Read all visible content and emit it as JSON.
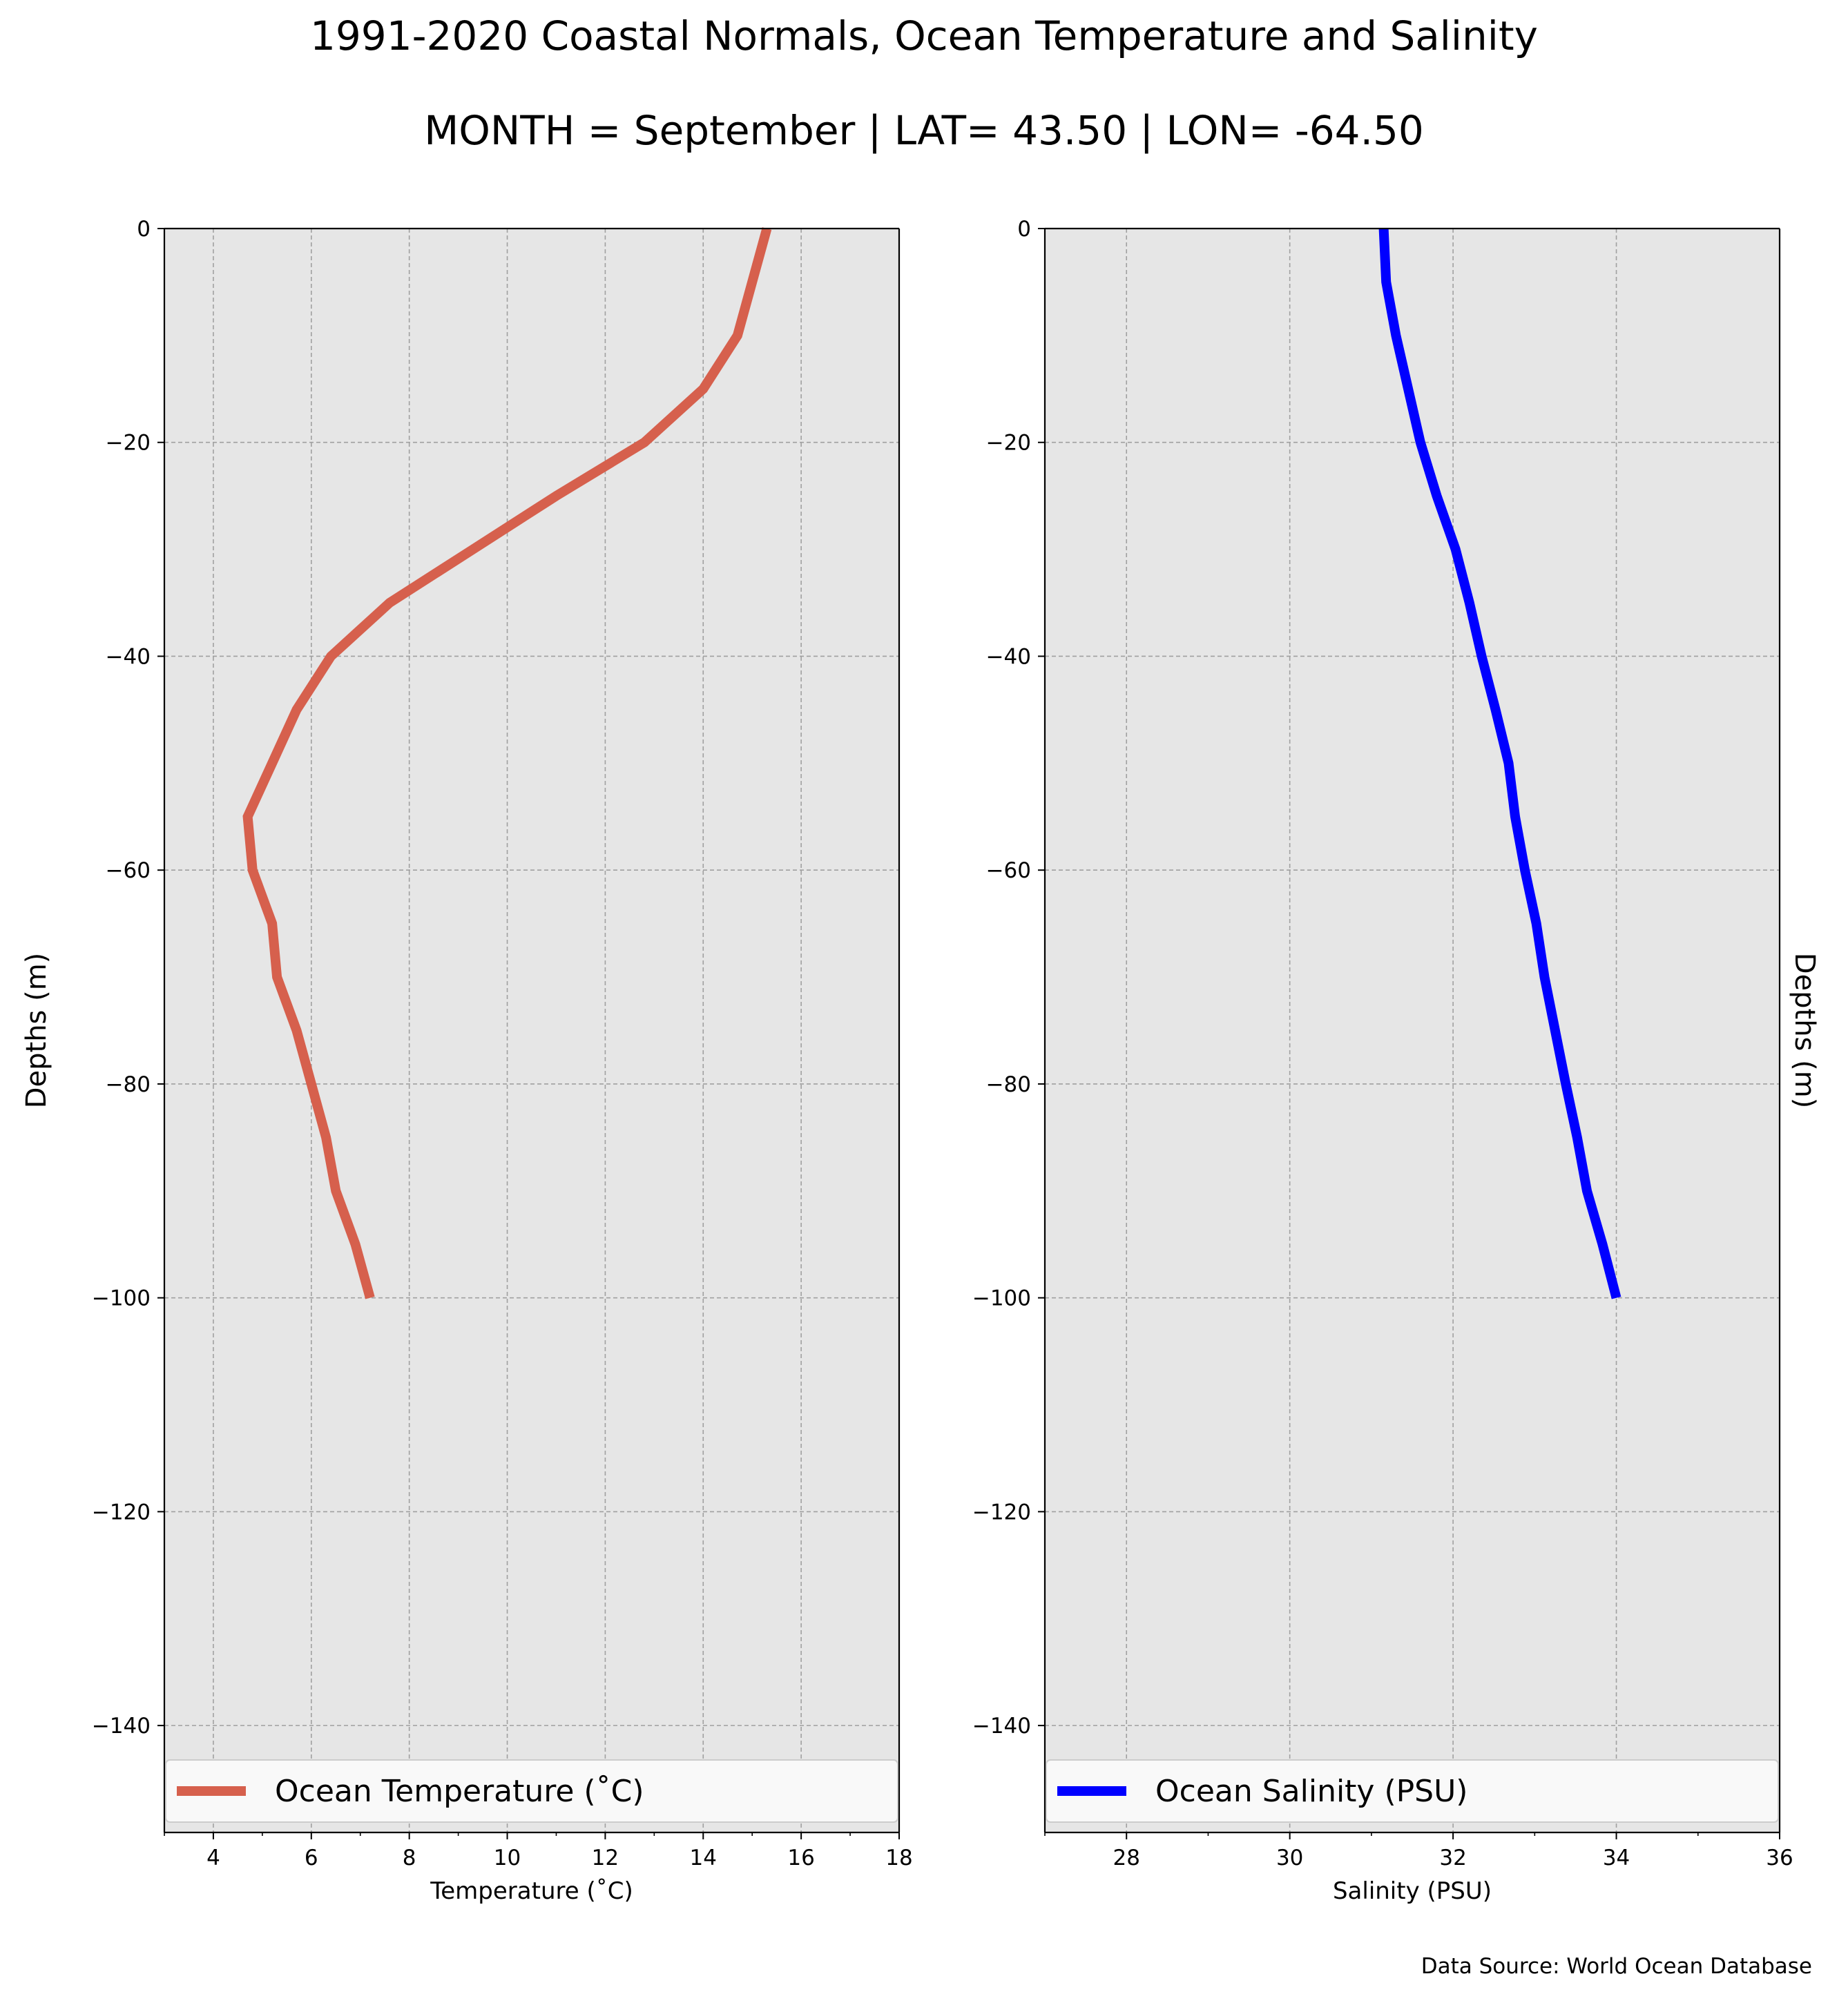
{
  "figure": {
    "title": "1991-2020 Coastal Normals, Ocean Temperature and Salinity",
    "subtitle": "MONTH = September | LAT= 43.50 | LON= -64.50",
    "source": "Data Source: World Ocean Database"
  },
  "colors": {
    "plot_background": "#e6e6e6",
    "grid": "#a0a0a0",
    "temperature": "#d6604d",
    "salinity": "#0000ff"
  },
  "chart_data": [
    {
      "type": "line",
      "xlabel": "Temperature ($^\\circ$C)",
      "xlabel_display": "Temperature (˚C)",
      "ylabel": "Depths (m)",
      "ylabel_position": "left",
      "xlim": [
        3,
        18
      ],
      "ylim": [
        -150,
        0
      ],
      "xticks": [
        4,
        6,
        8,
        10,
        12,
        14,
        16,
        18
      ],
      "yticks": [
        0,
        -20,
        -40,
        -60,
        -80,
        -100,
        -120,
        -140
      ],
      "ytick_labels": [
        "0",
        "−20",
        "−40",
        "−60",
        "−80",
        "−100",
        "−120",
        "−140"
      ],
      "grid": true,
      "legend_position": "bottom",
      "series": [
        {
          "name": "Ocean Temperature (˚C)",
          "color": "#d6604d",
          "x": [
            15.3,
            15.0,
            14.7,
            14.0,
            12.8,
            11.0,
            9.3,
            7.6,
            6.4,
            5.7,
            5.2,
            4.7,
            4.8,
            5.2,
            5.3,
            5.7,
            6.0,
            6.3,
            6.5,
            6.9,
            7.2
          ],
          "y": [
            0,
            -5,
            -10,
            -15,
            -20,
            -25,
            -30,
            -35,
            -40,
            -45,
            -50,
            -55,
            -60,
            -65,
            -70,
            -75,
            -80,
            -85,
            -90,
            -95,
            -100
          ]
        }
      ]
    },
    {
      "type": "line",
      "xlabel": "Salinity (PSU)",
      "ylabel": "Depths (m)",
      "ylabel_position": "right",
      "xlim": [
        27,
        36
      ],
      "ylim": [
        -150,
        0
      ],
      "xticks": [
        28,
        30,
        32,
        34,
        36
      ],
      "yticks": [
        0,
        -20,
        -40,
        -60,
        -80,
        -100,
        -120,
        -140
      ],
      "ytick_labels": [
        "0",
        "−20",
        "−40",
        "−60",
        "−80",
        "−100",
        "−120",
        "−140"
      ],
      "grid": true,
      "legend_position": "bottom",
      "series": [
        {
          "name": "Ocean Salinity (PSU)",
          "color": "#0000ff",
          "x": [
            31.15,
            31.18,
            31.3,
            31.45,
            31.6,
            31.8,
            32.03,
            32.2,
            32.35,
            32.52,
            32.68,
            32.76,
            32.88,
            33.02,
            33.12,
            33.25,
            33.38,
            33.52,
            33.64,
            33.83,
            34.0
          ],
          "y": [
            0,
            -5,
            -10,
            -15,
            -20,
            -25,
            -30,
            -35,
            -40,
            -45,
            -50,
            -55,
            -60,
            -65,
            -70,
            -75,
            -80,
            -85,
            -90,
            -95,
            -100
          ]
        }
      ]
    }
  ]
}
